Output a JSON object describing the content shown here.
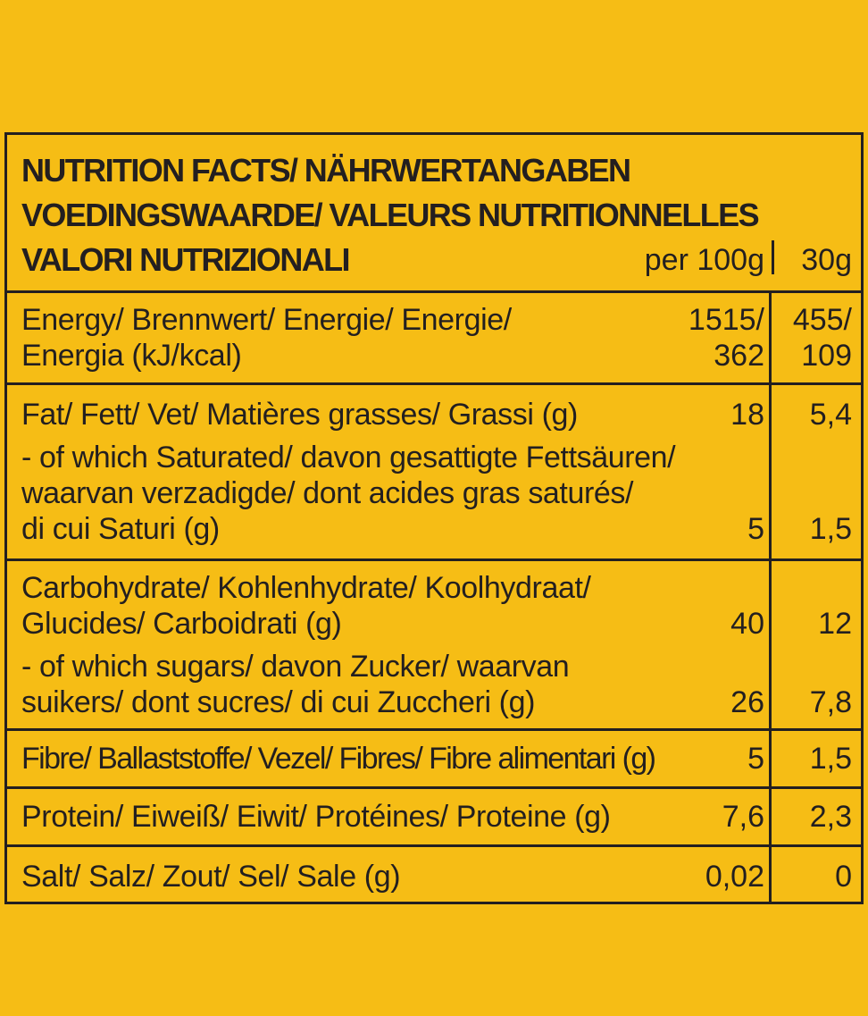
{
  "header": {
    "title_lines": [
      "NUTRITION FACTS/ NÄHRWERTANGABEN",
      "VOEDINGSWAARDE/ VALEURS NUTRITIONNELLES",
      "VALORI NUTRIZIONALI"
    ],
    "col_per_100g": "per 100g",
    "col_per_30g": "30g"
  },
  "rows": [
    {
      "items": [
        {
          "label": [
            "Energy/ Brennwert/ Energie/ Energie/",
            "Energia (kJ/kcal)"
          ],
          "per_100g": [
            "1515/",
            "362"
          ],
          "per_30g": [
            "455/",
            "109"
          ]
        }
      ]
    },
    {
      "items": [
        {
          "label": [
            "Fat/ Fett/ Vet/ Matières grasses/ Grassi (g)"
          ],
          "per_100g": [
            "18"
          ],
          "per_30g": [
            "5,4"
          ]
        },
        {
          "label": [
            "- of which Saturated/ davon gesattigte Fettsäuren/",
            "waarvan verzadigde/ dont acides gras saturés/",
            "di cui Saturi (g)"
          ],
          "per_100g": [
            "5"
          ],
          "per_30g": [
            "1,5"
          ]
        }
      ]
    },
    {
      "items": [
        {
          "label": [
            "Carbohydrate/ Kohlenhydrate/ Koolhydraat/",
            "Glucides/ Carboidrati (g)"
          ],
          "per_100g": [
            "40"
          ],
          "per_30g": [
            "12"
          ]
        },
        {
          "label": [
            "- of which sugars/ davon Zucker/ waarvan",
            "suikers/ dont sucres/ di cui Zuccheri (g)"
          ],
          "per_100g": [
            "26"
          ],
          "per_30g": [
            "7,8"
          ]
        }
      ]
    },
    {
      "items": [
        {
          "label": [
            "Fibre/ Ballaststoffe/ Vezel/ Fibres/ Fibre alimentari (g)"
          ],
          "per_100g": [
            "5"
          ],
          "per_30g": [
            "1,5"
          ]
        }
      ]
    },
    {
      "items": [
        {
          "label": [
            "Protein/ Eiweiß/ Eiwit/ Protéines/ Proteine (g)"
          ],
          "per_100g": [
            "7,6"
          ],
          "per_30g": [
            "2,3"
          ]
        }
      ]
    },
    {
      "items": [
        {
          "label": [
            "Salt/ Salz/ Zout/ Sel/ Sale (g)"
          ],
          "per_100g": [
            "0,02"
          ],
          "per_30g": [
            "0"
          ]
        }
      ]
    }
  ]
}
